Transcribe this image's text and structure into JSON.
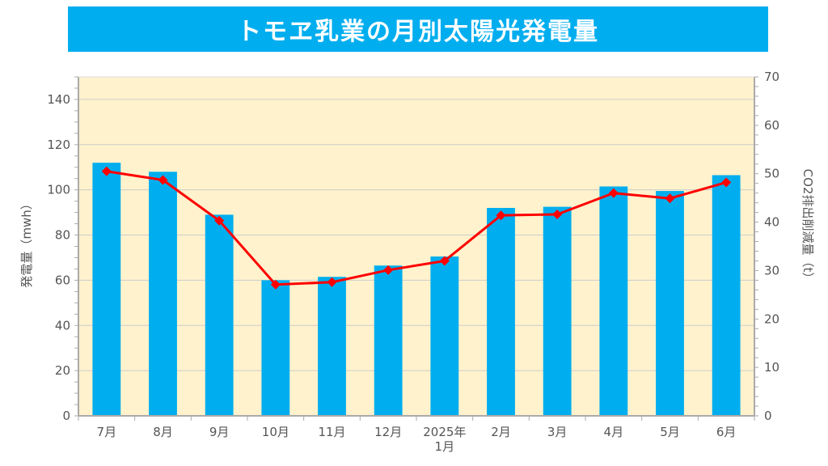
{
  "title": "トモヱ乳業の月別太陽光発電量",
  "chart_data": {
    "type": "bar",
    "categories": [
      "7月",
      "8月",
      "9月",
      "10月",
      "11月",
      "12月",
      "2025年\n1月",
      "2月",
      "3月",
      "4月",
      "5月",
      "6月"
    ],
    "series": [
      {
        "type": "bar",
        "axis": "left",
        "values": [
          112,
          108,
          89,
          60,
          61.5,
          66.5,
          70.5,
          92,
          92.5,
          101.5,
          99.5,
          106.5
        ]
      },
      {
        "type": "line",
        "axis": "right",
        "values": [
          50.5,
          48.7,
          40.3,
          27.1,
          27.6,
          30.1,
          32.0,
          41.4,
          41.6,
          46.0,
          44.9,
          48.2
        ]
      }
    ],
    "ylabel": "発電量（mwh）",
    "ylabel_right": "CO2排出削減量（t）",
    "ylim": [
      0,
      150
    ],
    "ylim_right": [
      0,
      70
    ],
    "yticks": [
      "0",
      "20",
      "40",
      "60",
      "80",
      "100",
      "120",
      "140"
    ],
    "yticks_right": [
      "0",
      "10",
      "20",
      "30",
      "40",
      "50",
      "60",
      "70"
    ],
    "grid": true,
    "legend": "none",
    "colors": {
      "bar": "#00aeef",
      "line": "#ff0000",
      "plot_bg": "#fff2cc",
      "banner": "#00aeef"
    }
  }
}
